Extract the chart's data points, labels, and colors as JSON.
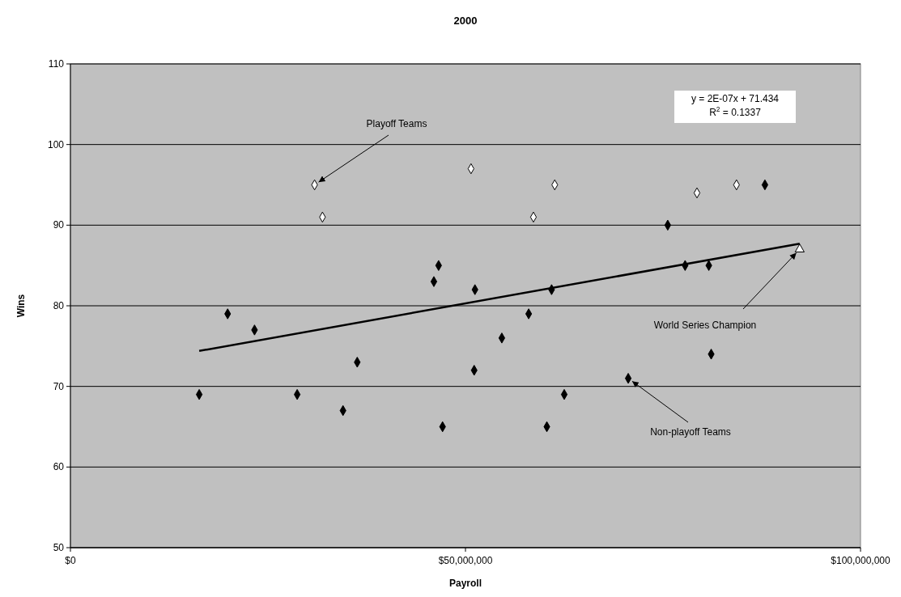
{
  "chart_data": {
    "type": "scatter",
    "title": "2000",
    "xlabel": "Payroll",
    "ylabel": "Wins",
    "xlim": [
      0,
      100000000
    ],
    "xticks": [
      {
        "value": 0,
        "label": "$0"
      },
      {
        "value": 50000000,
        "label": "$50,000,000"
      },
      {
        "value": 100000000,
        "label": "$100,000,000"
      }
    ],
    "ylim": [
      50,
      110
    ],
    "yticks": [
      50,
      60,
      70,
      80,
      90,
      100,
      110
    ],
    "grid": "y",
    "series": [
      {
        "color": "#000000",
        "marker": "diamond",
        "x": [
          16300000,
          19900000,
          23300000,
          28700000,
          34500000,
          36300000,
          46000000,
          46600000,
          47100000,
          51100000,
          51200000,
          54600000,
          58000000,
          60300000,
          60900000,
          62500000,
          70600000,
          75600000,
          77800000,
          80800000,
          81100000,
          87900000
        ],
        "values": [
          69,
          79,
          77,
          69,
          67,
          73,
          83,
          85,
          65,
          72,
          82,
          76,
          79,
          65,
          82,
          69,
          71,
          90,
          85,
          85,
          74,
          95
        ]
      },
      {
        "color": "#ffffff",
        "marker": "diamond",
        "x": [
          30900000,
          31900000,
          50700000,
          58600000,
          61300000,
          79300000,
          84300000
        ],
        "values": [
          95,
          91,
          97,
          91,
          95,
          94,
          95
        ]
      },
      {
        "color": "#ffffff",
        "marker": "triangle",
        "x": [
          92300000
        ],
        "values": [
          87
        ]
      },
      {
        "type": "line",
        "color": "#000000",
        "marker": "none",
        "line_style": "solid",
        "x": [
          16300000,
          92300000
        ],
        "values": [
          74.4,
          87.7
        ]
      }
    ],
    "annotations": [
      {
        "text": "Playoff Teams",
        "x": 30900000,
        "y": 95
      },
      {
        "text": "Non-playoff Teams",
        "x": 70600000,
        "y": 71
      },
      {
        "text": "World Series Champion",
        "x": 92300000,
        "y": 87
      },
      "y = 2E-07x + 71.434",
      "R$^{2}$ = 0.1337"
    ]
  }
}
